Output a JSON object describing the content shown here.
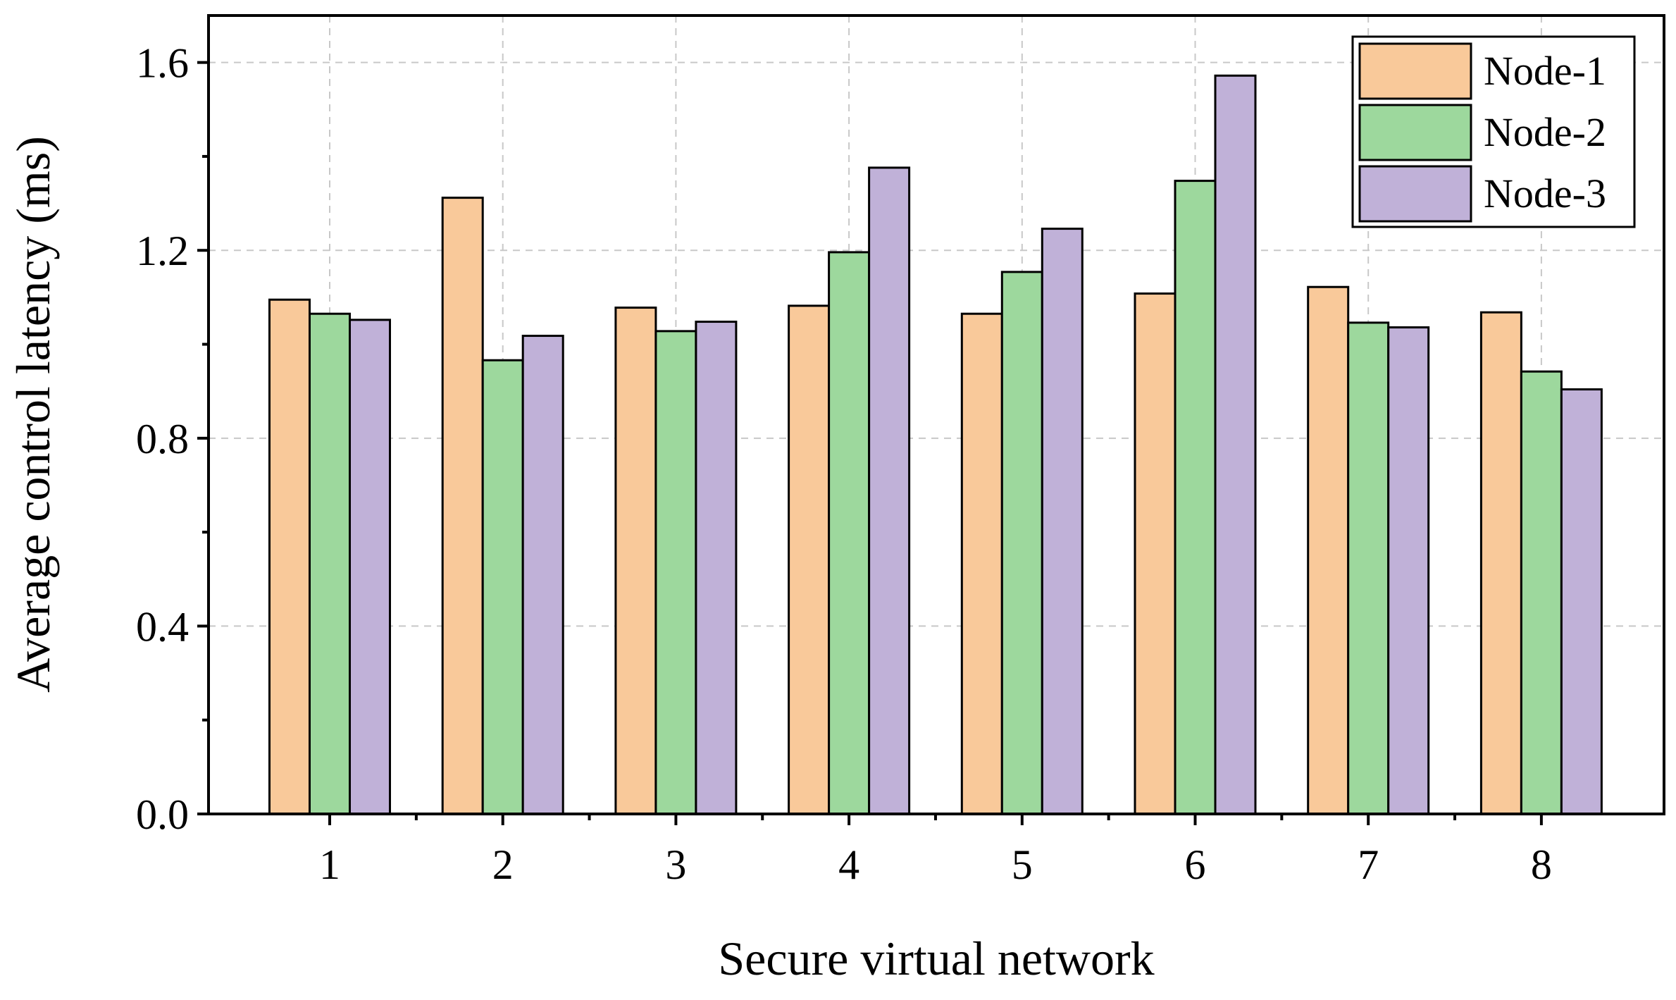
{
  "chart_data": {
    "type": "bar",
    "xlabel": "Secure virtual network",
    "ylabel": "Average control latency (ms)",
    "categories": [
      "1",
      "2",
      "3",
      "4",
      "5",
      "6",
      "7",
      "8"
    ],
    "ylim": [
      0,
      1.7
    ],
    "yticks": [
      0.0,
      0.4,
      0.8,
      1.2,
      1.6
    ],
    "ytick_labels": [
      "0.0",
      "0.4",
      "0.8",
      "1.2",
      "1.6"
    ],
    "grid": true,
    "legend_position": "top-right",
    "series": [
      {
        "name": "Node-1",
        "color": "#f9c99a",
        "values": [
          1.095,
          1.312,
          1.078,
          1.082,
          1.065,
          1.108,
          1.122,
          1.068
        ]
      },
      {
        "name": "Node-2",
        "color": "#9dd89d",
        "values": [
          1.065,
          0.966,
          1.028,
          1.196,
          1.154,
          1.348,
          1.046,
          0.942
        ]
      },
      {
        "name": "Node-3",
        "color": "#c0b1d8",
        "values": [
          1.052,
          1.018,
          1.048,
          1.376,
          1.246,
          1.572,
          1.036,
          0.904
        ]
      }
    ]
  }
}
